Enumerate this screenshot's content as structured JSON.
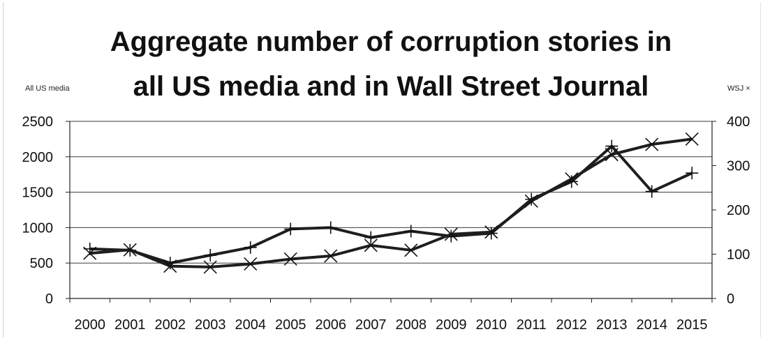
{
  "chart_data": {
    "type": "line",
    "title_line1": "Aggregate number of corruption stories in",
    "title_line2": "all US media and in Wall Street Journal",
    "left_axis_label": "All US media",
    "right_axis_label": "WSJ ×",
    "categories": [
      "2000",
      "2001",
      "2002",
      "2003",
      "2004",
      "2005",
      "2006",
      "2007",
      "2008",
      "2009",
      "2010",
      "2011",
      "2012",
      "2013",
      "2014",
      "2015"
    ],
    "left_ticks": [
      "0",
      "500",
      "1000",
      "1500",
      "2000",
      "2500"
    ],
    "right_ticks": [
      "0",
      "100",
      "200",
      "300",
      "400"
    ],
    "left_ylim": [
      0,
      2500
    ],
    "right_ylim": [
      0,
      400
    ],
    "grid": true,
    "series": [
      {
        "name": "All US media",
        "axis": "left",
        "marker": "plus",
        "values": [
          700,
          680,
          500,
          610,
          720,
          980,
          1000,
          860,
          950,
          880,
          920,
          1400,
          1650,
          2150,
          1510,
          1770
        ]
      },
      {
        "name": "WSJ",
        "axis": "right",
        "marker": "x",
        "values": [
          102,
          110,
          73,
          71,
          78,
          89,
          96,
          120,
          109,
          145,
          150,
          220,
          270,
          325,
          348,
          360
        ]
      }
    ]
  }
}
